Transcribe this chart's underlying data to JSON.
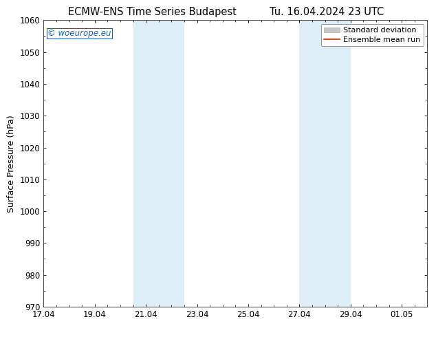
{
  "title_left": "ECMW-ENS Time Series Budapest",
  "title_right": "Tu. 16.04.2024 23 UTC",
  "ylabel": "Surface Pressure (hPa)",
  "ylim": [
    970,
    1060
  ],
  "yticks": [
    970,
    980,
    990,
    1000,
    1010,
    1020,
    1030,
    1040,
    1050,
    1060
  ],
  "xtick_labels": [
    "17.04",
    "19.04",
    "21.04",
    "23.04",
    "25.04",
    "27.04",
    "29.04",
    "01.05"
  ],
  "xtick_positions": [
    0,
    2,
    4,
    6,
    8,
    10,
    12,
    14
  ],
  "xlim": [
    0,
    15
  ],
  "shaded_bands": [
    {
      "x_start": 3.5,
      "x_end": 5.5,
      "color": "#deeef8"
    },
    {
      "x_start": 10.0,
      "x_end": 12.0,
      "color": "#deeef8"
    }
  ],
  "watermark_text": "© woeurope.eu",
  "watermark_color": "#1a5eb8",
  "legend_std_color": "#c8c8c8",
  "legend_std_edge": "#aaaaaa",
  "legend_mean_color": "#cc2200",
  "background_color": "#ffffff",
  "axes_bg_color": "#ffffff",
  "title_fontsize": 10.5,
  "label_fontsize": 9,
  "tick_fontsize": 8.5,
  "watermark_fontsize": 8.5,
  "legend_fontsize": 8
}
